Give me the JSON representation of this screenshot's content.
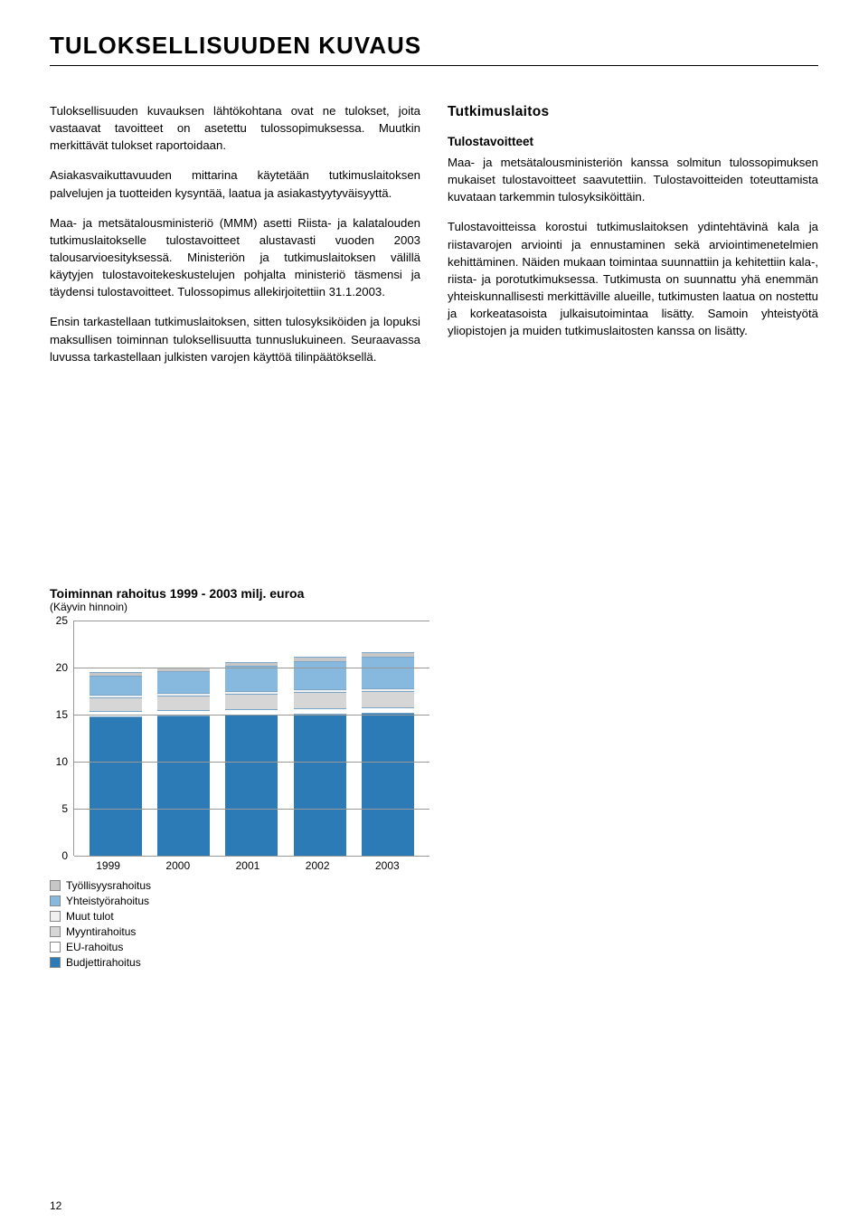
{
  "title": "TULOKSELLISUUDEN KUVAUS",
  "left": {
    "p1": "Tuloksellisuuden kuvauksen lähtökohtana ovat ne tulokset, joita vastaavat tavoitteet on asetettu tulossopimuksessa. Muutkin merkittävät tulokset raportoidaan.",
    "p2": "Asiakasvaikuttavuuden mittarina käytetään tutkimuslaitoksen palvelujen ja tuotteiden kysyntää, laatua ja asiakastyytyväisyyttä.",
    "p3": "Maa- ja metsätalousministeriö (MMM) asetti Riista- ja kalatalouden tutkimuslaitokselle tulostavoitteet alustavasti vuoden 2003 talousarvioesityksessä. Ministeriön ja tutkimuslaitoksen välillä käytyjen tulostavoitekeskustelujen pohjalta ministeriö täsmensi ja täydensi tulostavoitteet. Tulossopimus allekirjoitettiin 31.1.2003.",
    "p4": "Ensin tarkastellaan tutkimuslaitoksen, sitten tulosyksiköiden ja lopuksi maksullisen toiminnan tuloksellisuutta tunnuslukuineen. Seuraavassa luvussa tarkastellaan julkisten varojen käyttöä tilinpäätöksellä."
  },
  "right": {
    "h1": "Tutkimuslaitos",
    "h2": "Tulostavoitteet",
    "p1": "Maa- ja metsätalousministeriön kanssa solmitun tulossopimuksen mukaiset tulostavoitteet saavutettiin. Tulostavoitteiden toteuttamista kuvataan tarkemmin tulosyksiköittäin.",
    "p2": "Tulostavoitteissa korostui tutkimuslaitoksen ydintehtävinä kala ja riistavarojen arviointi ja ennustaminen sekä arviointimenetelmien kehittäminen. Näiden mukaan toimintaa suunnattiin ja kehitettiin kala-, riista- ja porotutkimuksessa. Tutkimusta on suunnattu yhä enemmän yhteiskunnallisesti merkittäville alueille, tutkimusten laatua on nostettu ja korkeatasoista julkaisutoimintaa lisätty. Samoin yhteistyötä yliopistojen ja muiden tutkimuslaitosten kanssa on lisätty."
  },
  "chart": {
    "title": "Toiminnan rahoitus 1999 - 2003 milj. euroa",
    "subtitle": "(Käyvin hinnoin)",
    "ymax": 25,
    "ytick_step": 5,
    "yticks": [
      0,
      5,
      10,
      15,
      20,
      25
    ],
    "categories": [
      "1999",
      "2000",
      "2001",
      "2002",
      "2003"
    ],
    "series": [
      {
        "key": "budjettirahoitus",
        "label": "Budjettirahoitus",
        "color": "#2c7bb6"
      },
      {
        "key": "eu",
        "label": "EU-rahoitus",
        "color": "#ffffff"
      },
      {
        "key": "myynti",
        "label": "Myyntirahoitus",
        "color": "#d6d6d6"
      },
      {
        "key": "muut",
        "label": "Muut tulot",
        "color": "#f0f0f0"
      },
      {
        "key": "yhteistyo",
        "label": "Yhteistyörahoitus",
        "color": "#87b8de"
      },
      {
        "key": "tyollisyys",
        "label": "Työllisyysrahoitus",
        "color": "#c7c7c7"
      }
    ],
    "legend_order": [
      "tyollisyys",
      "yhteistyo",
      "muut",
      "myynti",
      "eu",
      "budjettirahoitus"
    ],
    "data": {
      "1999": {
        "budjettirahoitus": 14.8,
        "eu": 0.6,
        "myynti": 1.4,
        "muut": 0.3,
        "yhteistyo": 2.0,
        "tyollisyys": 0.4
      },
      "2000": {
        "budjettirahoitus": 14.9,
        "eu": 0.6,
        "myynti": 1.5,
        "muut": 0.3,
        "yhteistyo": 2.3,
        "tyollisyys": 0.4
      },
      "2001": {
        "budjettirahoitus": 15.0,
        "eu": 0.6,
        "myynti": 1.6,
        "muut": 0.3,
        "yhteistyo": 2.7,
        "tyollisyys": 0.4
      },
      "2002": {
        "budjettirahoitus": 15.1,
        "eu": 0.6,
        "myynti": 1.7,
        "muut": 0.3,
        "yhteistyo": 3.0,
        "tyollisyys": 0.4
      },
      "2003": {
        "budjettirahoitus": 15.2,
        "eu": 0.6,
        "myynti": 1.7,
        "muut": 0.3,
        "yhteistyo": 3.3,
        "tyollisyys": 0.5
      }
    },
    "grid_color": "#999999",
    "background": "#ffffff"
  },
  "page_number": "12"
}
